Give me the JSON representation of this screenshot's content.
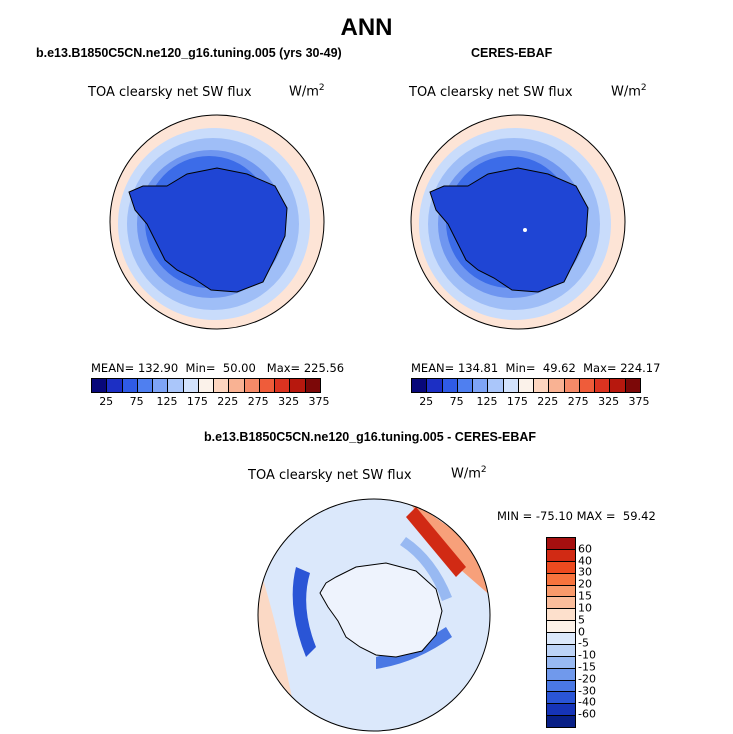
{
  "title": "ANN",
  "panels": [
    {
      "subtitle": "b.e13.B1850C5CN.ne120_g16.tuning.005 (yrs 30-49)",
      "field": "TOA clearsky net SW flux",
      "units_base": "W/m",
      "units_exp": "2",
      "mean_label": "MEAN=",
      "mean": "132.90",
      "min_label": "Min=",
      "min": "50.00",
      "max_label": "Max=",
      "max": "225.56"
    },
    {
      "subtitle": "CERES-EBAF",
      "field": "TOA clearsky net SW flux",
      "units_base": "W/m",
      "units_exp": "2",
      "mean_label": "MEAN=",
      "mean": "134.81",
      "min_label": "Min=",
      "min": "49.62",
      "max_label": "Max=",
      "max": "224.17"
    }
  ],
  "abs_colorbar": {
    "tick_labels": [
      "25",
      "75",
      "125",
      "175",
      "225",
      "275",
      "325",
      "375"
    ],
    "colors": [
      "#08087a",
      "#1c2fc4",
      "#2f5be6",
      "#4f7ff0",
      "#7ea4f6",
      "#aac6fa",
      "#d2e2fd",
      "#fbf2ea",
      "#fcd5bf",
      "#f9b293",
      "#f58a68",
      "#ef5c3a",
      "#db3320",
      "#b7180e",
      "#7c0808"
    ]
  },
  "diff_panel": {
    "subtitle": "b.e13.B1850C5CN.ne120_g16.tuning.005 - CERES-EBAF",
    "field": "TOA clearsky net SW flux",
    "units_base": "W/m",
    "units_exp": "2",
    "min_label": "MIN =",
    "min": "-75.10",
    "max_label": "MAX =",
    "max": "59.42",
    "colorbar": {
      "levels": [
        "60",
        "40",
        "30",
        "20",
        "15",
        "10",
        "5",
        "0",
        "-5",
        "-10",
        "-15",
        "-20",
        "-30",
        "-40",
        "-60"
      ],
      "colors": [
        "#a50f0f",
        "#d12a14",
        "#ed4a1f",
        "#f7733d",
        "#f99a6b",
        "#fbbd9b",
        "#fde0cc",
        "#fdf2e8",
        "#dbe8fb",
        "#bcd3f7",
        "#98b9f2",
        "#7099ec",
        "#4a78e4",
        "#2a55d6",
        "#1634b8",
        "#081f86"
      ]
    }
  }
}
